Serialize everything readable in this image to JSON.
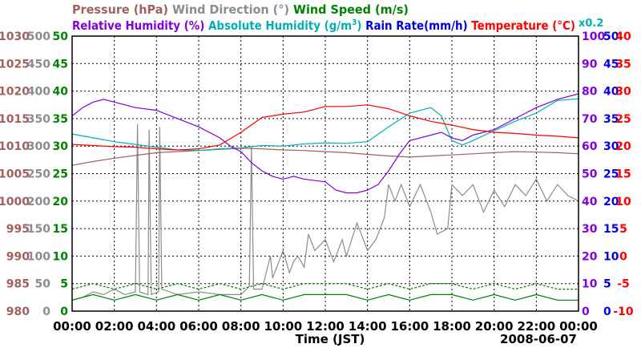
{
  "chart_data": {
    "type": "line",
    "legend": {
      "row1": [
        {
          "key": "pressure",
          "text": "Pressure (hPa)",
          "color": "#a06060"
        },
        {
          "key": "wind_dir",
          "text": "Wind Direction (°)",
          "color": "#8c8c8c"
        },
        {
          "key": "wind_speed",
          "text": "Wind Speed (m/s)",
          "color": "#008000"
        }
      ],
      "row2": [
        {
          "key": "rel_hum",
          "text": "Relative Humidity (%)",
          "color": "#8000e0"
        },
        {
          "key": "abs_hum",
          "text": "Absolute Humidity (g/m",
          "sup": "3",
          "close": ")",
          "color": "#00b0b0"
        },
        {
          "key": "rain",
          "text": "Rain Rate(mm/h)",
          "color": "#0000e0"
        },
        {
          "key": "temp",
          "text": "Temperature (°C)",
          "color": "#ff0000"
        }
      ],
      "scale_note": {
        "text": "x0.2",
        "color": "#00b0b0"
      }
    },
    "axes": {
      "pressure": {
        "ticks": [
          "1030",
          "1025",
          "1020",
          "1015",
          "1010",
          "1005",
          "1000",
          "995",
          "990",
          "985",
          "980"
        ],
        "range": [
          980,
          1030
        ],
        "color": "#a06060"
      },
      "wind_dir": {
        "ticks": [
          "500",
          "450",
          "400",
          "350",
          "300",
          "250",
          "200",
          "150",
          "100",
          "50",
          "0"
        ],
        "range": [
          0,
          500
        ],
        "color": "#8c8c8c"
      },
      "wind_speed": {
        "ticks": [
          "50",
          "45",
          "40",
          "35",
          "30",
          "25",
          "20",
          "15",
          "10",
          "5",
          "0"
        ],
        "range": [
          0,
          50
        ],
        "color": "#008000"
      },
      "rel_hum": {
        "ticks": [
          "100",
          "90",
          "80",
          "70",
          "60",
          "50",
          "40",
          "30",
          "20",
          "10",
          "0"
        ],
        "range": [
          0,
          100
        ],
        "color": "#8000e0"
      },
      "rain": {
        "ticks": [
          "50",
          "45",
          "40",
          "35",
          "30",
          "25",
          "20",
          "15",
          "10",
          "5",
          "0"
        ],
        "range": [
          0,
          50
        ],
        "color": "#0000e0"
      },
      "temp": {
        "ticks": [
          "40",
          "35",
          "30",
          "25",
          "20",
          "15",
          "10",
          "5",
          "0",
          "-5",
          "-10"
        ],
        "range": [
          -10,
          40
        ],
        "color": "#ff0000"
      },
      "x_ticks": [
        "00:00",
        "02:00",
        "04:00",
        "06:00",
        "08:00",
        "10:00",
        "12:00",
        "14:00",
        "16:00",
        "18:00",
        "20:00",
        "22:00",
        "00:00"
      ],
      "x_range_hours": [
        0,
        24
      ],
      "xlabel": "Time (JST)",
      "date": "2008-06-07"
    },
    "grid": true,
    "series": {
      "temp": {
        "color": "#ff0000",
        "unit_axis": "temp",
        "points": [
          [
            0,
            20.3
          ],
          [
            1,
            20.1
          ],
          [
            2,
            19.9
          ],
          [
            3,
            19.8
          ],
          [
            4,
            19.5
          ],
          [
            5,
            19.3
          ],
          [
            6,
            19.5
          ],
          [
            7,
            20.2
          ],
          [
            8,
            22.5
          ],
          [
            9,
            25.2
          ],
          [
            10,
            25.8
          ],
          [
            11,
            26.2
          ],
          [
            12,
            27.2
          ],
          [
            13,
            27.2
          ],
          [
            14,
            27.5
          ],
          [
            15,
            26.8
          ],
          [
            16,
            25.5
          ],
          [
            17,
            24.5
          ],
          [
            18,
            23.8
          ],
          [
            19,
            23.0
          ],
          [
            20,
            22.5
          ],
          [
            21,
            22.3
          ],
          [
            22,
            22.0
          ],
          [
            23,
            21.8
          ],
          [
            24,
            21.5
          ]
        ]
      },
      "pressure": {
        "color": "#a06060",
        "unit_axis": "pressure",
        "points": [
          [
            0,
            1006.5
          ],
          [
            1,
            1007.2
          ],
          [
            2,
            1007.8
          ],
          [
            3,
            1008.3
          ],
          [
            4,
            1008.8
          ],
          [
            5,
            1009.0
          ],
          [
            6,
            1009.2
          ],
          [
            7,
            1009.4
          ],
          [
            8,
            1009.6
          ],
          [
            9,
            1009.5
          ],
          [
            10,
            1009.3
          ],
          [
            11,
            1009.2
          ],
          [
            12,
            1009.0
          ],
          [
            13,
            1008.8
          ],
          [
            14,
            1008.5
          ],
          [
            15,
            1008.2
          ],
          [
            16,
            1008.0
          ],
          [
            17,
            1008.2
          ],
          [
            18,
            1008.4
          ],
          [
            19,
            1008.6
          ],
          [
            20,
            1008.8
          ],
          [
            21,
            1009.0
          ],
          [
            22,
            1008.9
          ],
          [
            23,
            1008.8
          ],
          [
            24,
            1008.6
          ]
        ]
      },
      "rel_hum": {
        "color": "#8000e0",
        "unit_axis": "rel_hum",
        "points": [
          [
            0,
            71
          ],
          [
            0.5,
            74
          ],
          [
            1,
            76
          ],
          [
            1.5,
            77
          ],
          [
            2,
            76
          ],
          [
            3,
            74
          ],
          [
            4,
            73
          ],
          [
            5,
            70
          ],
          [
            6,
            67
          ],
          [
            7,
            63
          ],
          [
            7.5,
            60
          ],
          [
            8,
            58
          ],
          [
            8.5,
            54
          ],
          [
            9,
            51
          ],
          [
            9.5,
            49
          ],
          [
            10,
            48
          ],
          [
            10.5,
            49
          ],
          [
            11,
            48
          ],
          [
            12,
            47
          ],
          [
            12.5,
            44
          ],
          [
            13,
            43
          ],
          [
            13.5,
            43
          ],
          [
            14,
            44
          ],
          [
            14.5,
            46
          ],
          [
            15,
            51
          ],
          [
            15.5,
            57
          ],
          [
            16,
            62
          ],
          [
            16.5,
            63
          ],
          [
            17,
            64
          ],
          [
            17.5,
            65
          ],
          [
            18,
            63
          ],
          [
            18.5,
            62
          ],
          [
            19,
            64
          ],
          [
            20,
            66
          ],
          [
            21,
            70
          ],
          [
            22,
            74
          ],
          [
            23,
            77
          ],
          [
            24,
            79
          ]
        ]
      },
      "abs_hum": {
        "color": "#00b0b0",
        "unit_axis": "temp",
        "points": [
          [
            0,
            22.2
          ],
          [
            1,
            21.5
          ],
          [
            2,
            20.8
          ],
          [
            3,
            20.3
          ],
          [
            4,
            19.8
          ],
          [
            5,
            19.3
          ],
          [
            6,
            19.2
          ],
          [
            7,
            19.5
          ],
          [
            8,
            19.7
          ],
          [
            9,
            20.1
          ],
          [
            10,
            20.0
          ],
          [
            11,
            20.4
          ],
          [
            12,
            20.6
          ],
          [
            13,
            20.5
          ],
          [
            14,
            20.8
          ],
          [
            15,
            23.5
          ],
          [
            16,
            26.0
          ],
          [
            17,
            27.0
          ],
          [
            17.5,
            25.5
          ],
          [
            18,
            21.0
          ],
          [
            18.5,
            20.2
          ],
          [
            19,
            21.0
          ],
          [
            20,
            22.8
          ],
          [
            21,
            24.5
          ],
          [
            22,
            26.0
          ],
          [
            23,
            28.3
          ],
          [
            24,
            28.6
          ]
        ]
      },
      "wind_dir": {
        "color": "#8c8c8c",
        "unit_axis": "wind_dir",
        "points": [
          [
            0,
            20
          ],
          [
            0.5,
            25
          ],
          [
            1,
            35
          ],
          [
            1.5,
            30
          ],
          [
            2,
            40
          ],
          [
            2.5,
            30
          ],
          [
            3,
            35
          ],
          [
            3.1,
            340
          ],
          [
            3.2,
            35
          ],
          [
            3.6,
            30
          ],
          [
            3.65,
            330
          ],
          [
            3.75,
            30
          ],
          [
            4.1,
            35
          ],
          [
            4.15,
            335
          ],
          [
            4.25,
            40
          ],
          [
            5,
            30
          ],
          [
            6,
            35
          ],
          [
            7,
            30
          ],
          [
            8,
            30
          ],
          [
            8.4,
            45
          ],
          [
            8.5,
            300
          ],
          [
            8.6,
            40
          ],
          [
            9,
            40
          ],
          [
            9.4,
            100
          ],
          [
            9.5,
            60
          ],
          [
            10,
            110
          ],
          [
            10.3,
            70
          ],
          [
            10.5,
            90
          ],
          [
            10.7,
            100
          ],
          [
            11,
            80
          ],
          [
            11.2,
            140
          ],
          [
            11.5,
            110
          ],
          [
            12,
            130
          ],
          [
            12.4,
            90
          ],
          [
            12.8,
            130
          ],
          [
            13,
            100
          ],
          [
            13.5,
            160
          ],
          [
            14,
            110
          ],
          [
            14.4,
            130
          ],
          [
            14.8,
            170
          ],
          [
            15,
            230
          ],
          [
            15.3,
            200
          ],
          [
            15.6,
            230
          ],
          [
            16,
            190
          ],
          [
            16.5,
            230
          ],
          [
            17,
            180
          ],
          [
            17.3,
            140
          ],
          [
            17.8,
            150
          ],
          [
            18,
            230
          ],
          [
            18.5,
            210
          ],
          [
            19,
            230
          ],
          [
            19.5,
            180
          ],
          [
            20,
            220
          ],
          [
            20.5,
            190
          ],
          [
            21,
            230
          ],
          [
            21.5,
            210
          ],
          [
            22,
            240
          ],
          [
            22.5,
            200
          ],
          [
            23,
            230
          ],
          [
            23.5,
            210
          ],
          [
            24,
            200
          ]
        ]
      },
      "wind_speed": {
        "color": "#008000",
        "unit_axis": "wind_speed",
        "points": [
          [
            0,
            2
          ],
          [
            1,
            3
          ],
          [
            2,
            2
          ],
          [
            3,
            3
          ],
          [
            4,
            2
          ],
          [
            5,
            3
          ],
          [
            6,
            2
          ],
          [
            7,
            3
          ],
          [
            8,
            2
          ],
          [
            9,
            3
          ],
          [
            10,
            2
          ],
          [
            11,
            3
          ],
          [
            12,
            3
          ],
          [
            13,
            3
          ],
          [
            14,
            2
          ],
          [
            15,
            3
          ],
          [
            16,
            2
          ],
          [
            17,
            3
          ],
          [
            18,
            3
          ],
          [
            19,
            2
          ],
          [
            20,
            3
          ],
          [
            21,
            2
          ],
          [
            22,
            3
          ],
          [
            23,
            2
          ],
          [
            24,
            2
          ]
        ]
      },
      "wind_gust": {
        "color": "#008000",
        "unit_axis": "wind_speed",
        "dashed": true,
        "points": [
          [
            0,
            4
          ],
          [
            1,
            5
          ],
          [
            2,
            4
          ],
          [
            3,
            5
          ],
          [
            4,
            4
          ],
          [
            5,
            5
          ],
          [
            6,
            4
          ],
          [
            7,
            5
          ],
          [
            8,
            4
          ],
          [
            9,
            5
          ],
          [
            10,
            4
          ],
          [
            11,
            5
          ],
          [
            12,
            5
          ],
          [
            13,
            5
          ],
          [
            14,
            4
          ],
          [
            15,
            5
          ],
          [
            16,
            4
          ],
          [
            17,
            5
          ],
          [
            18,
            5
          ],
          [
            19,
            4
          ],
          [
            20,
            5
          ],
          [
            21,
            4
          ],
          [
            22,
            5
          ],
          [
            23,
            4
          ],
          [
            24,
            4
          ]
        ]
      }
    }
  }
}
